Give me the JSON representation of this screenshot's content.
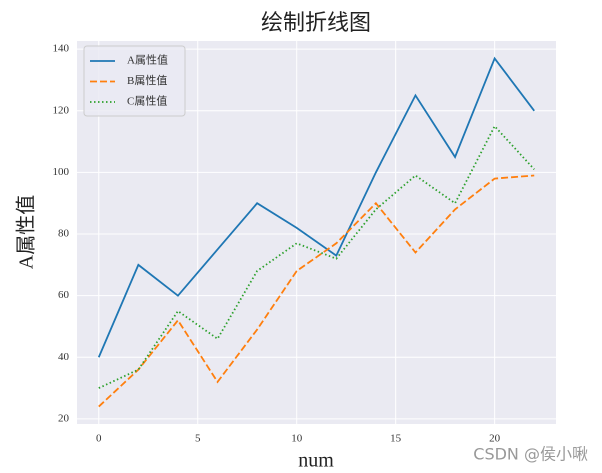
{
  "chart_data": {
    "type": "line",
    "title": "绘制折线图",
    "x_label": "num",
    "y_label": "A属性值",
    "x": [
      0,
      2,
      4,
      6,
      8,
      10,
      12,
      14,
      16,
      18,
      20,
      22
    ],
    "series": [
      {
        "name": "A属性值",
        "color": "#1f77b4",
        "style": "solid",
        "values": [
          40,
          70,
          60,
          75,
          90,
          82,
          73,
          100,
          125,
          105,
          137,
          120
        ]
      },
      {
        "name": "B属性值",
        "color": "#ff7f0e",
        "style": "dashed",
        "values": [
          24,
          36,
          52,
          32,
          49,
          68,
          77,
          90,
          74,
          88,
          98,
          99
        ]
      },
      {
        "name": "C属性值",
        "color": "#2ca02c",
        "style": "dotted",
        "values": [
          30,
          36,
          55,
          46,
          68,
          77,
          72,
          88,
          99,
          90,
          115,
          101
        ]
      }
    ],
    "xlim": [
      -1.1,
      23.1
    ],
    "xticks": [
      0,
      5,
      10,
      15,
      20
    ],
    "ylim": [
      18.35,
      142.65
    ],
    "yticks": [
      20,
      40,
      60,
      80,
      100,
      120,
      140
    ],
    "grid": true,
    "legend": "upper left",
    "watermark": "CSDN @侯小啾"
  }
}
